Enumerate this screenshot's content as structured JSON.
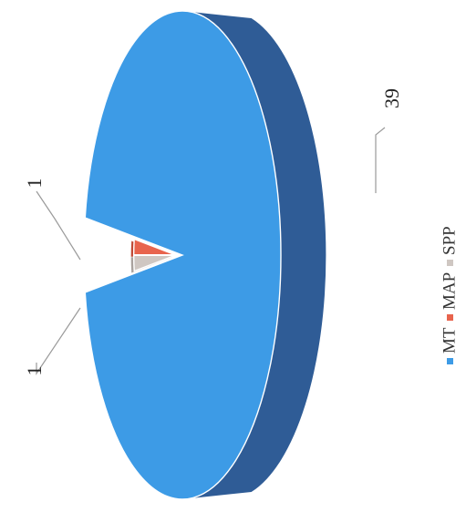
{
  "chart_data": {
    "type": "pie",
    "categories": [
      "MT",
      "MAP",
      "SPP"
    ],
    "values": [
      39,
      1,
      1
    ],
    "data_labels": [
      "39",
      "1",
      "1"
    ],
    "colors": {
      "MT": "#3d9be6",
      "MAP": "#e8644d",
      "SPP": "#cfc7c2",
      "MT_side": "#2f5c96",
      "MAP_side": "#c04a36",
      "SPP_side": "#a9a29e"
    },
    "style": "3d-exploded",
    "orientation": "rotated-90-ccw",
    "legend_position": "right"
  }
}
